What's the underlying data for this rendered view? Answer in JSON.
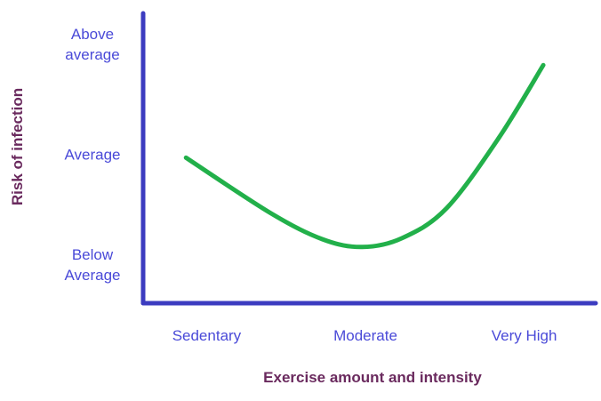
{
  "chart_data": {
    "type": "line",
    "title": "",
    "xlabel": "Exercise amount and intensity",
    "ylabel": "Risk of  infection",
    "x_ticks": [
      "Sedentary",
      "Moderate",
      "Very High"
    ],
    "y_ticks": [
      [
        "Below",
        "Average"
      ],
      [
        "Average"
      ],
      [
        "Above",
        "average"
      ]
    ],
    "xlim": [
      -0.4,
      2.45
    ],
    "ylim": [
      -0.35,
      2.28
    ],
    "grid": false,
    "legend": "none",
    "series": [
      {
        "x": [
          -0.13,
          0.4,
          0.73,
          0.98,
          1.23,
          1.51,
          1.84,
          2.12
        ],
        "y": [
          0.97,
          0.47,
          0.23,
          0.16,
          0.24,
          0.51,
          1.15,
          1.81
        ]
      }
    ],
    "colors": {
      "axis": "#3c3cc0",
      "line": "#22b04a",
      "tick_text": "#4a4ad8",
      "label_text": "#6a2a5e"
    }
  }
}
